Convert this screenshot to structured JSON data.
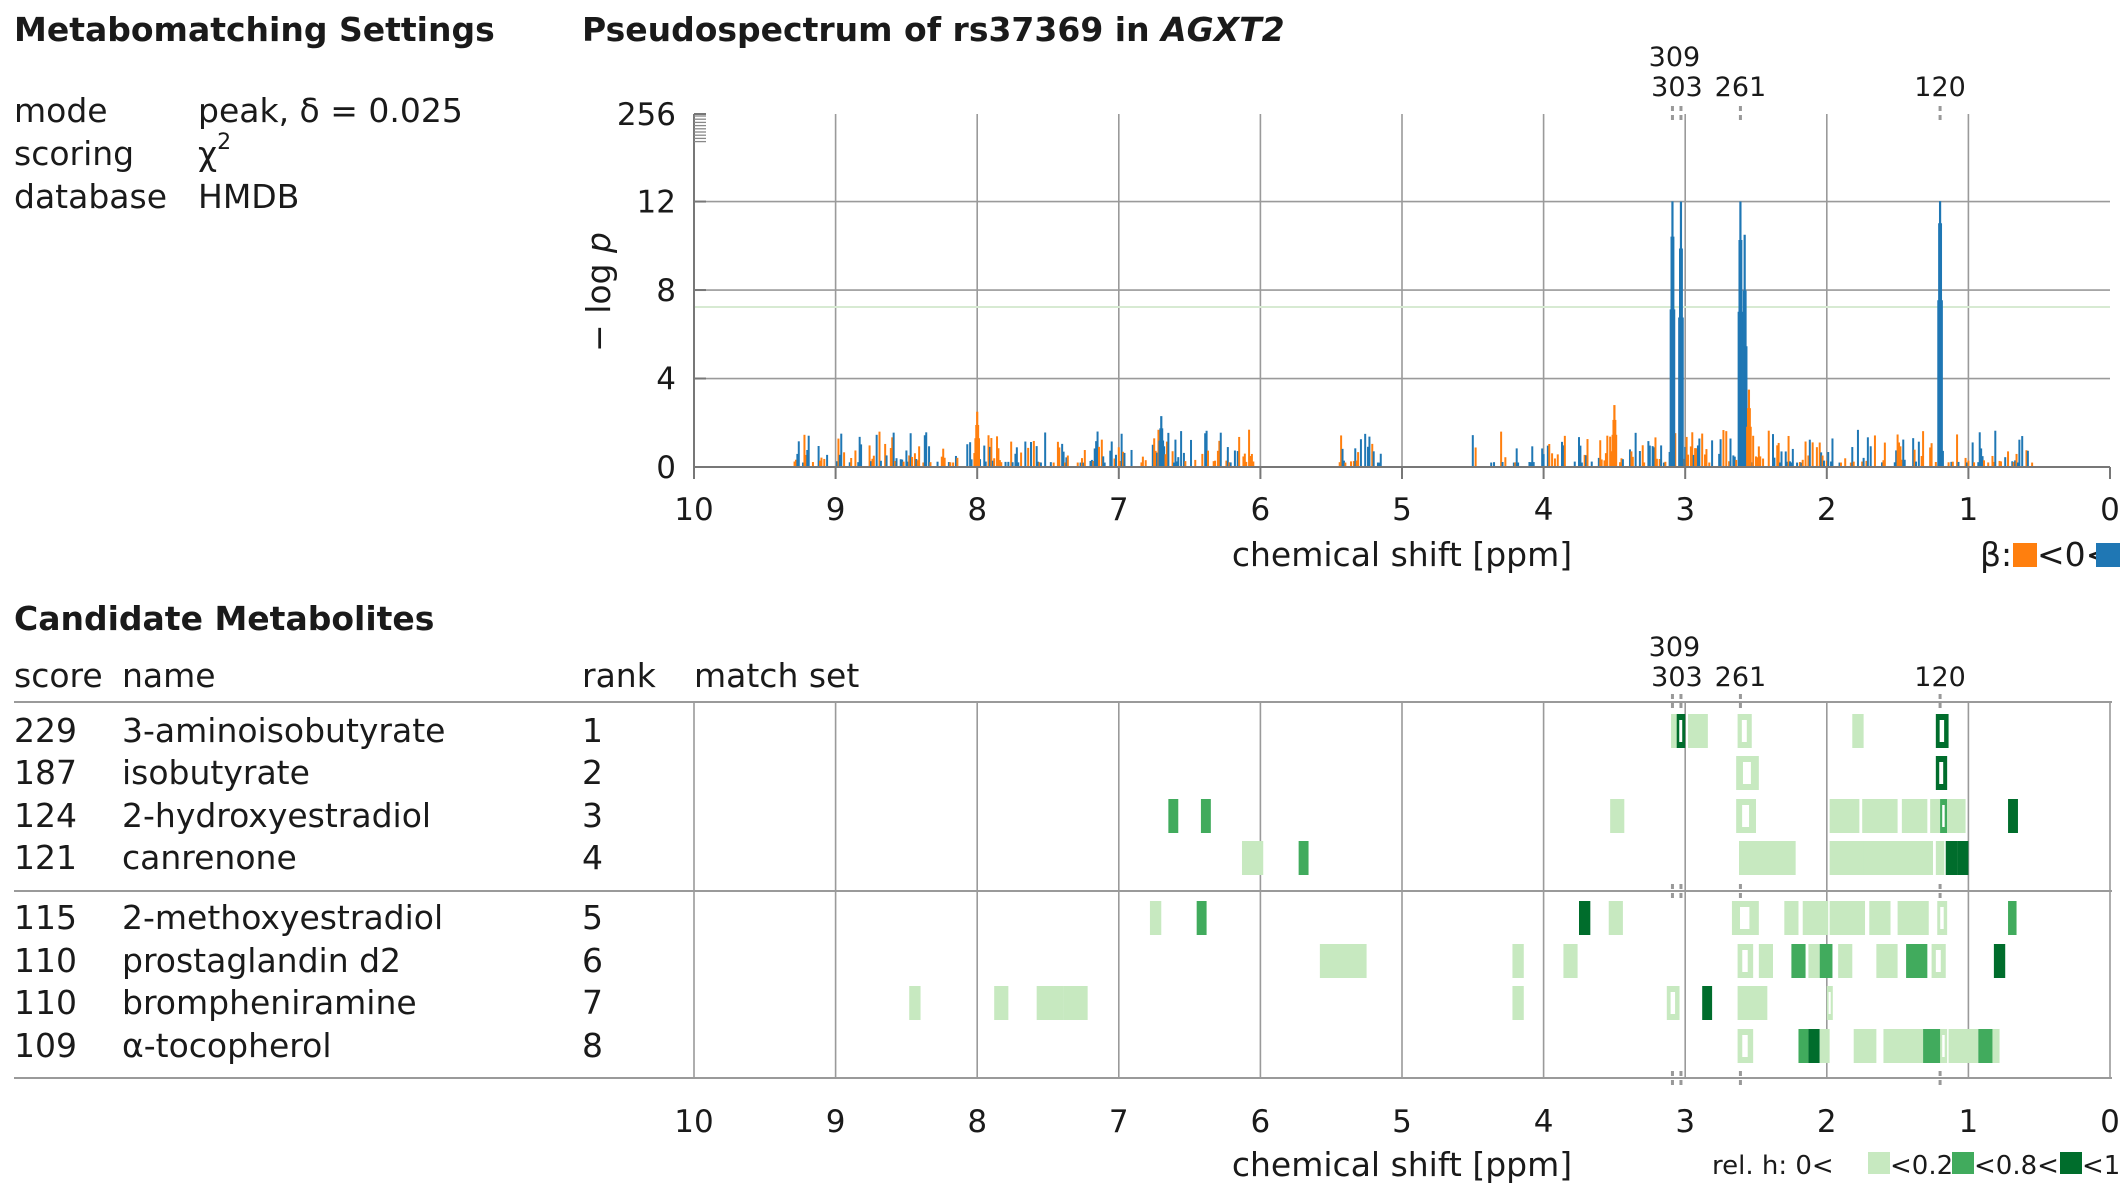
{
  "settings": {
    "title": "Metabomatching Settings",
    "rows": [
      {
        "key": "mode",
        "value": "peak, δ = 0.025"
      },
      {
        "key": "scoring",
        "value": "χ",
        "sup": "2"
      },
      {
        "key": "database",
        "value": "HMDB"
      }
    ]
  },
  "spectrum": {
    "title_prefix": "Pseudospectrum of rs37369 in ",
    "title_gene": "AGXT2",
    "ylabel_prefix": "− log ",
    "ylabel_var": "p",
    "xlabel": "chemical shift [ppm]",
    "beta_legend": {
      "label": "β:",
      "mid": "<0<",
      "neg_color": "#ff7f0e",
      "pos_color": "#1f77b4"
    }
  },
  "candidates": {
    "title": "Candidate Metabolites",
    "headers": {
      "score": "score",
      "name": "name",
      "rank": "rank",
      "match_set": "match set"
    },
    "rows": [
      {
        "score": "229",
        "name": "3-aminoisobutyrate",
        "rank": "1"
      },
      {
        "score": "187",
        "name": "isobutyrate",
        "rank": "2"
      },
      {
        "score": "124",
        "name": "2-hydroxyestradiol",
        "rank": "3"
      },
      {
        "score": "121",
        "name": "canrenone",
        "rank": "4"
      },
      {
        "score": "115",
        "name": "2-methoxyestradiol",
        "rank": "5"
      },
      {
        "score": "110",
        "name": "prostaglandin d2",
        "rank": "6"
      },
      {
        "score": "110",
        "name": "brompheniramine",
        "rank": "7"
      },
      {
        "score": "109",
        "name": "α-tocopherol",
        "rank": "8"
      }
    ],
    "xlabel": "chemical shift [ppm]",
    "relh_legend": {
      "prefix": "rel. h: 0<",
      "l1": "<0.2<",
      "l2": "<0.8<",
      "l3": "<1",
      "colors": [
        "#c7e9c0",
        "#41ab5d",
        "#006d2c"
      ]
    }
  },
  "chart_data": [
    {
      "type": "bar",
      "title": "Pseudospectrum of rs37369 in AGXT2",
      "xlabel": "chemical shift [ppm]",
      "ylabel": "− log p",
      "xlim": [
        10,
        0
      ],
      "x_reversed": true,
      "xticks": [
        10,
        9,
        8,
        7,
        6,
        5,
        4,
        3,
        2,
        1,
        0
      ],
      "yticks": [
        0,
        4,
        8,
        12,
        256
      ],
      "ylim": [
        0,
        256
      ],
      "significance_line": 7.3,
      "peak_markers": [
        {
          "x": 3.09,
          "label": "309"
        },
        {
          "x": 3.03,
          "label": "303"
        },
        {
          "x": 2.61,
          "label": "261"
        },
        {
          "x": 1.2,
          "label": "120"
        }
      ],
      "major_peaks": [
        {
          "x": 3.09,
          "y": 13.7,
          "beta": "positive"
        },
        {
          "x": 3.03,
          "y": 13.0,
          "beta": "positive"
        },
        {
          "x": 2.61,
          "y": 13.5,
          "beta": "positive"
        },
        {
          "x": 2.58,
          "y": 10.5,
          "beta": "positive"
        },
        {
          "x": 1.2,
          "y": 14.5,
          "beta": "positive"
        },
        {
          "x": 8.0,
          "y": 2.5,
          "beta": "negative"
        },
        {
          "x": 6.7,
          "y": 2.3,
          "beta": "positive"
        },
        {
          "x": 3.5,
          "y": 2.8,
          "beta": "negative"
        },
        {
          "x": 2.55,
          "y": 3.5,
          "beta": "negative"
        }
      ],
      "noise_regions": [
        [
          9.3,
          6.05
        ],
        [
          5.45,
          5.15
        ],
        [
          4.5,
          0.55
        ]
      ],
      "legend": {
        "title": "β",
        "entries": [
          "<0",
          ">0"
        ]
      }
    },
    {
      "type": "heatmap",
      "title": "Candidate Metabolites",
      "xlabel": "chemical shift [ppm]",
      "xlim": [
        10,
        0
      ],
      "categories": [
        "3-aminoisobutyrate",
        "isobutyrate",
        "2-hydroxyestradiol",
        "canrenone",
        "2-methoxyestradiol",
        "prostaglandin d2",
        "brompheniramine",
        "α-tocopherol"
      ],
      "scores": [
        229,
        187,
        124,
        121,
        115,
        110,
        110,
        109
      ],
      "relative_height_bins": [
        "0-0.2",
        "0.2-0.8",
        "0.8-1"
      ],
      "match_sets": [
        [
          [
            3.1,
            3.04,
            0
          ],
          [
            3.06,
            3.0,
            2,
            true
          ],
          [
            2.98,
            2.84,
            0
          ],
          [
            2.63,
            2.53,
            0,
            true
          ],
          [
            1.82,
            1.74,
            0
          ],
          [
            1.23,
            1.14,
            2,
            true
          ]
        ],
        [
          [
            2.64,
            2.48,
            0,
            true
          ],
          [
            1.23,
            1.15,
            2,
            true
          ]
        ],
        [
          [
            6.65,
            6.58,
            1
          ],
          [
            6.42,
            6.35,
            1
          ],
          [
            3.53,
            3.43,
            0
          ],
          [
            2.64,
            2.5,
            0,
            true
          ],
          [
            1.98,
            1.77,
            0
          ],
          [
            1.75,
            1.5,
            0
          ],
          [
            1.47,
            1.29,
            0
          ],
          [
            1.27,
            1.2,
            0
          ],
          [
            1.2,
            1.15,
            1,
            true
          ],
          [
            1.15,
            1.02,
            0
          ],
          [
            0.72,
            0.65,
            2
          ]
        ],
        [
          [
            6.13,
            5.98,
            0
          ],
          [
            5.73,
            5.66,
            1
          ],
          [
            2.62,
            2.57,
            0
          ],
          [
            2.58,
            2.22,
            0
          ],
          [
            1.98,
            1.73,
            0
          ],
          [
            1.74,
            1.25,
            0
          ],
          [
            1.23,
            1.17,
            0
          ],
          [
            1.16,
            1.08,
            2
          ],
          [
            1.08,
            1.0,
            2
          ]
        ],
        [
          [
            6.78,
            6.7,
            0
          ],
          [
            6.45,
            6.38,
            1
          ],
          [
            3.75,
            3.67,
            2
          ],
          [
            3.54,
            3.44,
            0
          ],
          [
            2.67,
            2.48,
            0,
            true
          ],
          [
            2.3,
            2.2,
            0
          ],
          [
            2.17,
            1.99,
            0
          ],
          [
            1.98,
            1.73,
            0
          ],
          [
            1.7,
            1.55,
            0
          ],
          [
            1.5,
            1.28,
            0
          ],
          [
            1.22,
            1.15,
            0,
            true
          ],
          [
            0.72,
            0.66,
            1
          ]
        ],
        [
          [
            5.58,
            5.25,
            0
          ],
          [
            4.22,
            4.14,
            0
          ],
          [
            3.86,
            3.76,
            0
          ],
          [
            2.63,
            2.52,
            0,
            true
          ],
          [
            2.48,
            2.38,
            0
          ],
          [
            2.25,
            2.15,
            1
          ],
          [
            2.13,
            2.05,
            0
          ],
          [
            2.05,
            1.96,
            1
          ],
          [
            1.92,
            1.82,
            0
          ],
          [
            1.65,
            1.5,
            0
          ],
          [
            1.44,
            1.29,
            1
          ],
          [
            1.26,
            1.16,
            0,
            true
          ],
          [
            0.82,
            0.74,
            2
          ]
        ],
        [
          [
            8.48,
            8.4,
            0
          ],
          [
            7.88,
            7.78,
            0
          ],
          [
            7.58,
            7.39,
            0
          ],
          [
            7.39,
            7.22,
            0
          ],
          [
            4.22,
            4.14,
            0
          ],
          [
            3.13,
            3.04,
            0,
            true
          ],
          [
            2.88,
            2.81,
            2
          ],
          [
            2.63,
            2.42,
            0
          ],
          [
            2.0,
            1.96,
            0,
            true
          ]
        ],
        [
          [
            2.63,
            2.52,
            0,
            true
          ],
          [
            2.2,
            2.13,
            1
          ],
          [
            2.13,
            2.05,
            2
          ],
          [
            2.05,
            1.98,
            0
          ],
          [
            1.81,
            1.65,
            0
          ],
          [
            1.6,
            1.32,
            0
          ],
          [
            1.32,
            1.19,
            1
          ],
          [
            1.2,
            1.15,
            0,
            true
          ],
          [
            1.14,
            0.93,
            0
          ],
          [
            0.93,
            0.83,
            1
          ],
          [
            0.83,
            0.78,
            0
          ]
        ]
      ]
    }
  ]
}
